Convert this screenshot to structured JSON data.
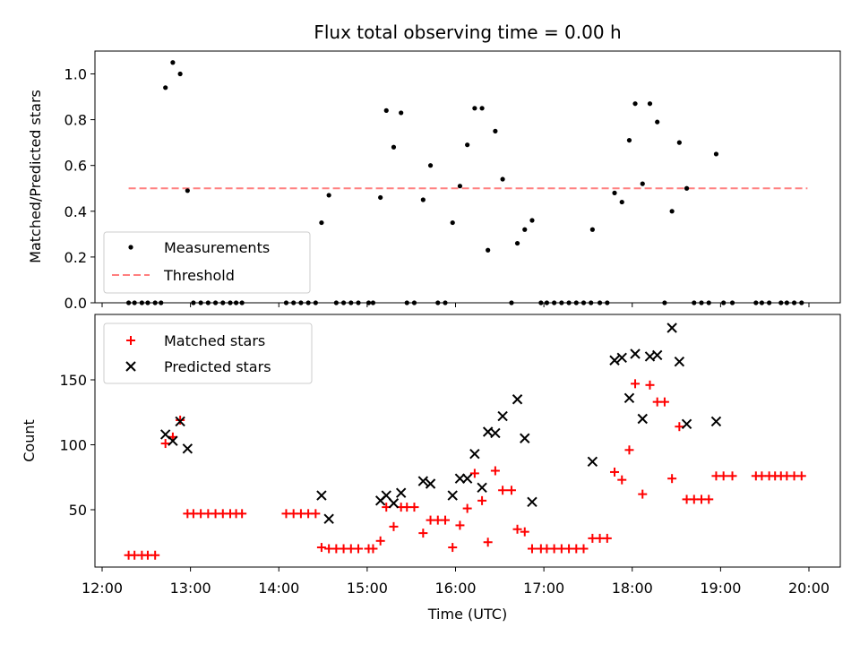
{
  "chart_data": [
    {
      "type": "scatter",
      "title": "Flux total observing time = 0.00 h",
      "xlabel": "",
      "ylabel": "Matched/Predicted stars",
      "xlim": [
        "12:00",
        "20:00"
      ],
      "ylim": [
        0,
        1.1
      ],
      "yticks": [
        "0.0",
        "0.2",
        "0.4",
        "0.6",
        "0.8",
        "1.0"
      ],
      "legend_position": "lower-left",
      "series": [
        {
          "name": "Measurements",
          "color": "#000000",
          "marker": "dot",
          "points": [
            [
              "12:18",
              0.0
            ],
            [
              "12:22",
              0.0
            ],
            [
              "12:27",
              0.0
            ],
            [
              "12:31",
              0.0
            ],
            [
              "12:36",
              0.0
            ],
            [
              "12:40",
              0.0
            ],
            [
              "12:43",
              0.94
            ],
            [
              "12:48",
              1.05
            ],
            [
              "12:53",
              1.0
            ],
            [
              "12:58",
              0.49
            ],
            [
              "13:02",
              0.0
            ],
            [
              "13:07",
              0.0
            ],
            [
              "13:12",
              0.0
            ],
            [
              "13:17",
              0.0
            ],
            [
              "13:22",
              0.0
            ],
            [
              "13:27",
              0.0
            ],
            [
              "13:31",
              0.0
            ],
            [
              "13:35",
              0.0
            ],
            [
              "14:05",
              0.0
            ],
            [
              "14:10",
              0.0
            ],
            [
              "14:15",
              0.0
            ],
            [
              "14:20",
              0.0
            ],
            [
              "14:25",
              0.0
            ],
            [
              "14:29",
              0.35
            ],
            [
              "14:34",
              0.47
            ],
            [
              "14:39",
              0.0
            ],
            [
              "14:44",
              0.0
            ],
            [
              "14:49",
              0.0
            ],
            [
              "14:54",
              0.0
            ],
            [
              "15:01",
              0.0
            ],
            [
              "15:04",
              0.0
            ],
            [
              "15:09",
              0.46
            ],
            [
              "15:13",
              0.84
            ],
            [
              "15:18",
              0.68
            ],
            [
              "15:23",
              0.83
            ],
            [
              "15:27",
              0.0
            ],
            [
              "15:32",
              0.0
            ],
            [
              "15:38",
              0.45
            ],
            [
              "15:43",
              0.6
            ],
            [
              "15:48",
              0.0
            ],
            [
              "15:53",
              0.0
            ],
            [
              "15:58",
              0.35
            ],
            [
              "16:03",
              0.51
            ],
            [
              "16:08",
              0.69
            ],
            [
              "16:13",
              0.85
            ],
            [
              "16:18",
              0.85
            ],
            [
              "16:22",
              0.23
            ],
            [
              "16:27",
              0.75
            ],
            [
              "16:32",
              0.54
            ],
            [
              "16:38",
              0.0
            ],
            [
              "16:42",
              0.26
            ],
            [
              "16:47",
              0.32
            ],
            [
              "16:52",
              0.36
            ],
            [
              "16:58",
              0.0
            ],
            [
              "17:02",
              0.0
            ],
            [
              "17:07",
              0.0
            ],
            [
              "17:12",
              0.0
            ],
            [
              "17:17",
              0.0
            ],
            [
              "17:22",
              0.0
            ],
            [
              "17:27",
              0.0
            ],
            [
              "17:32",
              0.0
            ],
            [
              "17:33",
              0.32
            ],
            [
              "17:38",
              0.0
            ],
            [
              "17:43",
              0.0
            ],
            [
              "17:48",
              0.48
            ],
            [
              "17:53",
              0.44
            ],
            [
              "17:58",
              0.71
            ],
            [
              "18:02",
              0.87
            ],
            [
              "18:07",
              0.52
            ],
            [
              "18:12",
              0.87
            ],
            [
              "18:17",
              0.79
            ],
            [
              "18:22",
              0.0
            ],
            [
              "18:27",
              0.4
            ],
            [
              "18:32",
              0.7
            ],
            [
              "18:37",
              0.5
            ],
            [
              "18:42",
              0.0
            ],
            [
              "18:47",
              0.0
            ],
            [
              "18:52",
              0.0
            ],
            [
              "18:57",
              0.65
            ],
            [
              "19:02",
              0.0
            ],
            [
              "19:08",
              0.0
            ],
            [
              "19:24",
              0.0
            ],
            [
              "19:28",
              0.0
            ],
            [
              "19:33",
              0.0
            ],
            [
              "19:41",
              0.0
            ],
            [
              "19:45",
              0.0
            ],
            [
              "19:50",
              0.0
            ],
            [
              "19:55",
              0.0
            ]
          ]
        },
        {
          "name": "Threshold",
          "color": "#ff7f7f",
          "marker": "dashed-line",
          "points": [
            [
              "12:18",
              0.5
            ],
            [
              "19:59",
              0.5
            ]
          ]
        }
      ]
    },
    {
      "type": "scatter",
      "title": "",
      "xlabel": "Time (UTC)",
      "ylabel": "Count",
      "xlim": [
        "12:00",
        "20:00"
      ],
      "ylim": [
        7,
        195
      ],
      "yticks": [
        "50",
        "100",
        "150"
      ],
      "xticks": [
        "12:00",
        "13:00",
        "14:00",
        "15:00",
        "16:00",
        "17:00",
        "18:00",
        "19:00",
        "20:00"
      ],
      "legend_position": "upper-left",
      "series": [
        {
          "name": "Matched stars",
          "color": "#ff0000",
          "marker": "plus",
          "points": [
            [
              "12:18",
              15
            ],
            [
              "12:22",
              15
            ],
            [
              "12:27",
              15
            ],
            [
              "12:31",
              15
            ],
            [
              "12:36",
              15
            ],
            [
              "12:43",
              101
            ],
            [
              "12:48",
              106
            ],
            [
              "12:53",
              119
            ],
            [
              "12:58",
              47
            ],
            [
              "13:02",
              47
            ],
            [
              "13:07",
              47
            ],
            [
              "13:12",
              47
            ],
            [
              "13:17",
              47
            ],
            [
              "13:22",
              47
            ],
            [
              "13:27",
              47
            ],
            [
              "13:31",
              47
            ],
            [
              "13:35",
              47
            ],
            [
              "14:05",
              47
            ],
            [
              "14:10",
              47
            ],
            [
              "14:15",
              47
            ],
            [
              "14:20",
              47
            ],
            [
              "14:25",
              47
            ],
            [
              "14:29",
              21
            ],
            [
              "14:34",
              20
            ],
            [
              "14:39",
              20
            ],
            [
              "14:44",
              20
            ],
            [
              "14:49",
              20
            ],
            [
              "14:54",
              20
            ],
            [
              "15:01",
              20
            ],
            [
              "15:04",
              20
            ],
            [
              "15:09",
              26
            ],
            [
              "15:13",
              52
            ],
            [
              "15:18",
              37
            ],
            [
              "15:23",
              52
            ],
            [
              "15:27",
              52
            ],
            [
              "15:32",
              52
            ],
            [
              "15:38",
              32
            ],
            [
              "15:43",
              42
            ],
            [
              "15:48",
              42
            ],
            [
              "15:53",
              42
            ],
            [
              "15:58",
              21
            ],
            [
              "16:03",
              38
            ],
            [
              "16:08",
              51
            ],
            [
              "16:13",
              78
            ],
            [
              "16:18",
              57
            ],
            [
              "16:22",
              25
            ],
            [
              "16:27",
              80
            ],
            [
              "16:32",
              65
            ],
            [
              "16:38",
              65
            ],
            [
              "16:42",
              35
            ],
            [
              "16:47",
              33
            ],
            [
              "16:52",
              20
            ],
            [
              "16:58",
              20
            ],
            [
              "17:02",
              20
            ],
            [
              "17:07",
              20
            ],
            [
              "17:12",
              20
            ],
            [
              "17:17",
              20
            ],
            [
              "17:22",
              20
            ],
            [
              "17:27",
              20
            ],
            [
              "17:33",
              28
            ],
            [
              "17:38",
              28
            ],
            [
              "17:43",
              28
            ],
            [
              "17:48",
              79
            ],
            [
              "17:53",
              73
            ],
            [
              "17:58",
              96
            ],
            [
              "18:02",
              147
            ],
            [
              "18:07",
              62
            ],
            [
              "18:12",
              146
            ],
            [
              "18:17",
              133
            ],
            [
              "18:22",
              133
            ],
            [
              "18:27",
              74
            ],
            [
              "18:32",
              114
            ],
            [
              "18:37",
              58
            ],
            [
              "18:42",
              58
            ],
            [
              "18:47",
              58
            ],
            [
              "18:52",
              58
            ],
            [
              "18:57",
              76
            ],
            [
              "19:02",
              76
            ],
            [
              "19:08",
              76
            ],
            [
              "19:24",
              76
            ],
            [
              "19:28",
              76
            ],
            [
              "19:33",
              76
            ],
            [
              "19:37",
              76
            ],
            [
              "19:41",
              76
            ],
            [
              "19:45",
              76
            ],
            [
              "19:50",
              76
            ],
            [
              "19:55",
              76
            ]
          ]
        },
        {
          "name": "Predicted stars",
          "color": "#000000",
          "marker": "x",
          "points": [
            [
              "12:43",
              108
            ],
            [
              "12:48",
              103
            ],
            [
              "12:53",
              118
            ],
            [
              "12:58",
              97
            ],
            [
              "14:29",
              61
            ],
            [
              "14:34",
              43
            ],
            [
              "15:09",
              57
            ],
            [
              "15:13",
              61
            ],
            [
              "15:18",
              55
            ],
            [
              "15:23",
              63
            ],
            [
              "15:38",
              72
            ],
            [
              "15:43",
              70
            ],
            [
              "15:58",
              61
            ],
            [
              "16:03",
              74
            ],
            [
              "16:08",
              74
            ],
            [
              "16:13",
              93
            ],
            [
              "16:18",
              67
            ],
            [
              "16:22",
              110
            ],
            [
              "16:27",
              109
            ],
            [
              "16:32",
              122
            ],
            [
              "16:42",
              135
            ],
            [
              "16:47",
              105
            ],
            [
              "16:52",
              56
            ],
            [
              "17:33",
              87
            ],
            [
              "17:48",
              165
            ],
            [
              "17:53",
              167
            ],
            [
              "17:58",
              136
            ],
            [
              "18:02",
              170
            ],
            [
              "18:07",
              120
            ],
            [
              "18:12",
              168
            ],
            [
              "18:17",
              169
            ],
            [
              "18:27",
              190
            ],
            [
              "18:32",
              164
            ],
            [
              "18:37",
              116
            ],
            [
              "18:57",
              118
            ]
          ]
        }
      ]
    }
  ]
}
